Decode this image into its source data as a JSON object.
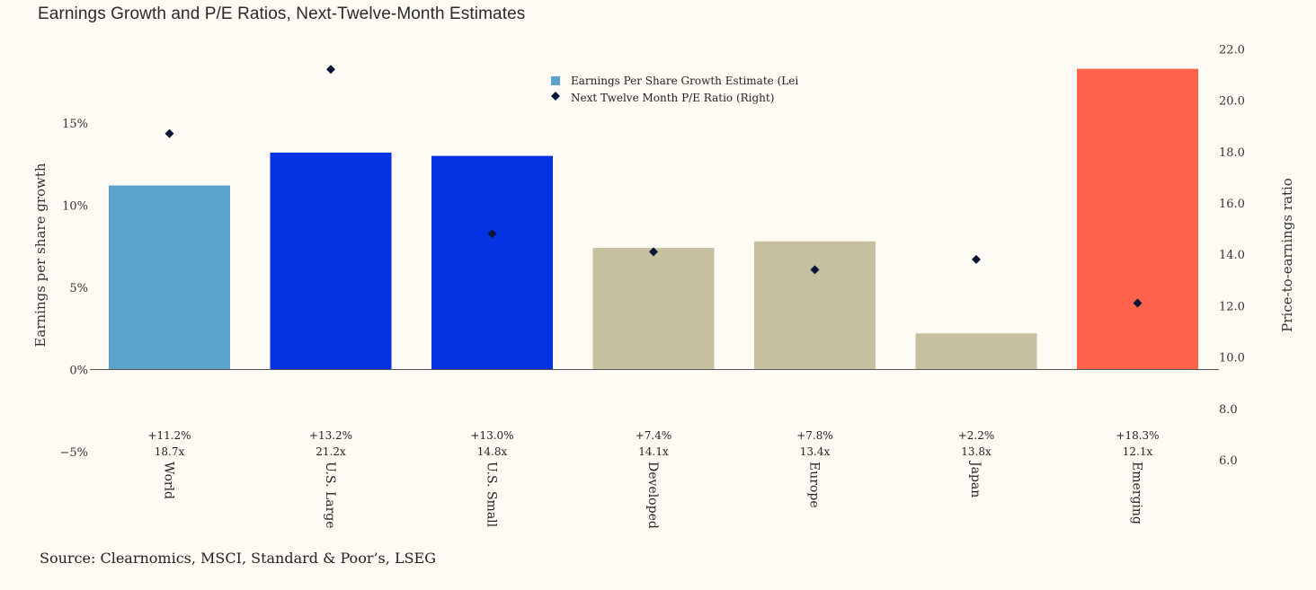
{
  "title": "Earnings Growth and P/E Ratios, Next-Twelve-Month Estimates",
  "source": "Source: Clearnomics, MSCI, Standard & Poor’s, LSEG",
  "chart_data": {
    "type": "bar",
    "title": "Earnings Growth and P/E Ratios, Next-Twelve-Month Estimates",
    "categories": [
      "World",
      "U.S. Large",
      "U.S. Small",
      "Developed",
      "Europe",
      "Japan",
      "Emerging"
    ],
    "series": [
      {
        "name": "Earnings Per Share Growth Estimate (Lei",
        "type": "bar",
        "axis": "left",
        "values": [
          11.2,
          13.2,
          13.0,
          7.4,
          7.8,
          2.2,
          18.3
        ],
        "colors": [
          "#5ba3cd",
          "#0433e4",
          "#0433e4",
          "#c6c0a0",
          "#c6c0a0",
          "#c6c0a0",
          "#ff634c"
        ]
      },
      {
        "name": "Next Twelve Month P/E Ratio (Right)",
        "type": "scatter",
        "axis": "right",
        "values": [
          18.7,
          21.2,
          14.8,
          14.1,
          13.4,
          13.8,
          12.1
        ],
        "color": "#0c1535"
      }
    ],
    "data_labels": [
      [
        "+11.2%",
        "18.7x"
      ],
      [
        "+13.2%",
        "21.2x"
      ],
      [
        "+13.0%",
        "14.8x"
      ],
      [
        "+7.4%",
        "14.1x"
      ],
      [
        "+7.8%",
        "13.4x"
      ],
      [
        "+2.2%",
        "13.8x"
      ],
      [
        "+18.3%",
        "12.1x"
      ]
    ],
    "ylabel": "Earnings per share growth",
    "y2label": "Price-to-earnings ratio",
    "ylim": [
      -5,
      20
    ],
    "y2lim": [
      6,
      22
    ],
    "yticks": [
      -5,
      0,
      5,
      10,
      15
    ],
    "ytick_labels": [
      "−5%",
      "0%",
      "5%",
      "10%",
      "15%"
    ],
    "y2ticks": [
      6,
      8,
      10,
      12,
      14,
      16,
      18,
      20,
      22
    ],
    "y2tick_labels": [
      "6.0",
      "8.0",
      "10.0",
      "12.0",
      "14.0",
      "16.0",
      "18.0",
      "20.0",
      "22.0"
    ],
    "grid": false,
    "legend_position": "top-center"
  }
}
